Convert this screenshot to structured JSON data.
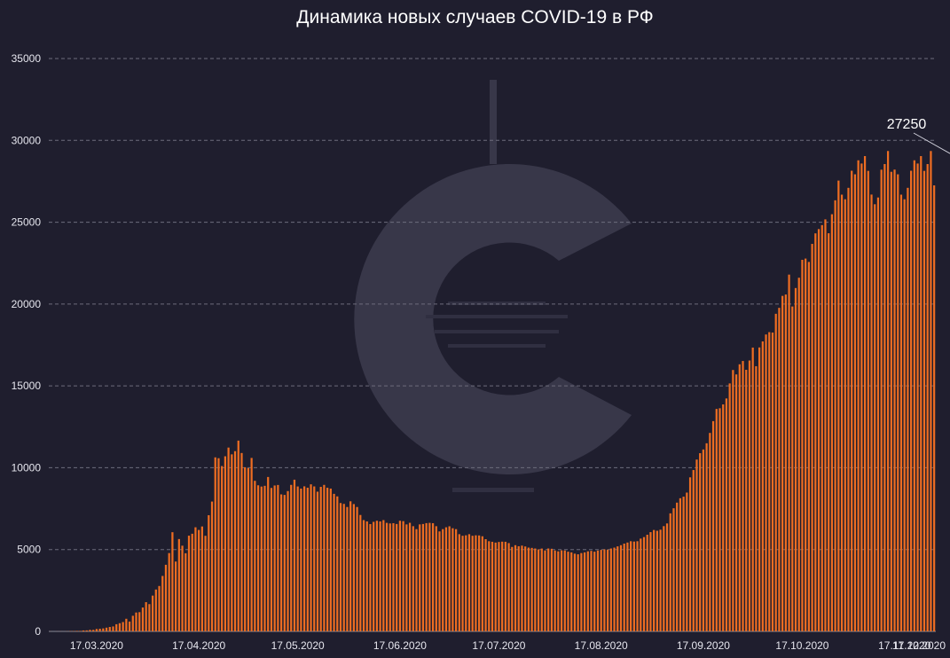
{
  "chart_data": {
    "type": "bar",
    "title": "Динамика новых случаев COVID-19 в РФ",
    "xlabel": "",
    "ylabel": "",
    "ylim": [
      0,
      35000
    ],
    "yticks": [
      0,
      5000,
      10000,
      15000,
      20000,
      25000,
      30000,
      35000
    ],
    "xtick_labels": [
      "17.03.2020",
      "17.04.2020",
      "17.05.2020",
      "17.06.2020",
      "17.07.2020",
      "17.08.2020",
      "17.09.2020",
      "17.10.2020",
      "17.11.2020",
      "17.12.2020"
    ],
    "start_date": "2020-03-03",
    "grid": true,
    "bar_color": "#ee6d22",
    "annotation": {
      "label": "27250",
      "date": "2020-12-18",
      "value": 27250
    },
    "values": [
      3,
      0,
      3,
      4,
      2,
      7,
      15,
      18,
      30,
      30,
      58,
      63,
      93,
      93,
      147,
      163,
      182,
      228,
      270,
      303,
      438,
      500,
      571,
      771,
      601,
      954,
      1154,
      1175,
      1459,
      1786,
      1667,
      2186,
      2558,
      2774,
      3388,
      4070,
      4785,
      6060,
      4268,
      5642,
      5236,
      4774,
      5849,
      5966,
      6361,
      6198,
      6411,
      5841,
      7099,
      7933,
      10633,
      10581,
      10102,
      10699,
      11231,
      10817,
      11012,
      11656,
      10899,
      10028,
      9974,
      10598,
      9200,
      8926,
      8849,
      8894,
      9434,
      8764,
      8915,
      8946,
      8371,
      8338,
      8572,
      8952,
      9268,
      8855,
      8726,
      8863,
      8779,
      8985,
      8858,
      8536,
      8831,
      8952,
      8779,
      8726,
      8404,
      8248,
      7843,
      7790,
      7600,
      7948,
      7779,
      7600,
      7113,
      6800,
      6719,
      6556,
      6693,
      6760,
      6719,
      6800,
      6632,
      6595,
      6611,
      6562,
      6760,
      6736,
      6536,
      6635,
      6428,
      6248,
      6537,
      6562,
      6615,
      6632,
      6611,
      6428,
      6109,
      6248,
      6361,
      6422,
      6303,
      6248,
      5940,
      5842,
      5871,
      5940,
      5842,
      5871,
      5862,
      5811,
      5635,
      5509,
      5475,
      5427,
      5462,
      5482,
      5475,
      5395,
      5159,
      5267,
      5204,
      5241,
      5189,
      5118,
      5102,
      5065,
      5010,
      5061,
      4945,
      5065,
      5048,
      4945,
      4892,
      4952,
      4945,
      4870,
      4828,
      4748,
      4711,
      4785,
      4829,
      4892,
      4921,
      4870,
      4941,
      4980,
      5010,
      4993,
      5065,
      5118,
      5195,
      5267,
      5363,
      5429,
      5509,
      5488,
      5509,
      5670,
      5762,
      5905,
      6065,
      6196,
      6148,
      6215,
      6431,
      6595,
      7212,
      7523,
      7867,
      8135,
      8232,
      8481,
      9412,
      9859,
      10499,
      10888,
      11115,
      11493,
      12126,
      12846,
      13592,
      13634,
      13868,
      14231,
      15150,
      15971,
      15700,
      16319,
      16521,
      15982,
      16550,
      17340,
      16202,
      17347,
      17717,
      18140,
      18283,
      18257,
      19404,
      19768,
      20498,
      20582,
      21798,
      19851,
      20977,
      21608,
      22702,
      22778,
      22572,
      23675,
      24318,
      24581,
      24822,
      25173,
      24326,
      25487,
      26338,
      27543,
      26683,
      26402,
      27100,
      28145,
      27927,
      28782,
      28585,
      29039,
      28137,
      26689,
      26097,
      26509,
      28209,
      28552,
      29350,
      28080,
      28214,
      27927,
      26683,
      26402,
      27100,
      28145,
      28782,
      28585,
      29039,
      28137,
      28552,
      29350,
      27250
    ]
  }
}
